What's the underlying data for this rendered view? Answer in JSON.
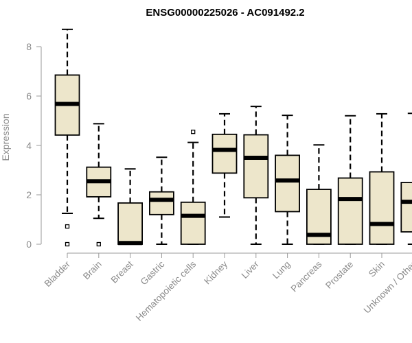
{
  "chart_data": {
    "type": "boxplot",
    "title": "ENSG00000225026 - AC091492.2",
    "ylabel": "Expression",
    "xlabel": "",
    "ylim": [
      0,
      8.8
    ],
    "yticks": [
      0,
      2,
      4,
      6,
      8
    ],
    "box_fill": "#ede6cb",
    "categories": [
      "Bladder",
      "Brain",
      "Breast",
      "Gastric",
      "Hematopoietic cells",
      "Kidney",
      "Liver",
      "Lung",
      "Pancreas",
      "Prostate",
      "Skin",
      "Unknown / Other"
    ],
    "boxes": [
      {
        "min": 1.25,
        "q1": 4.42,
        "median": 5.68,
        "q3": 6.85,
        "max": 8.7,
        "outliers": [
          0.72,
          0.0
        ]
      },
      {
        "min": 1.05,
        "q1": 1.92,
        "median": 2.55,
        "q3": 3.12,
        "max": 4.88,
        "outliers": [
          0.0
        ]
      },
      {
        "min": 0.0,
        "q1": 0.0,
        "median": 0.05,
        "q3": 1.67,
        "max": 3.05,
        "outliers": []
      },
      {
        "min": 0.0,
        "q1": 1.2,
        "median": 1.8,
        "q3": 2.12,
        "max": 3.52,
        "outliers": []
      },
      {
        "min": 0.0,
        "q1": 0.0,
        "median": 1.15,
        "q3": 1.7,
        "max": 4.12,
        "outliers": [
          4.55
        ]
      },
      {
        "min": 1.1,
        "q1": 2.88,
        "median": 3.82,
        "q3": 4.45,
        "max": 5.28,
        "outliers": []
      },
      {
        "min": 0.0,
        "q1": 1.88,
        "median": 3.5,
        "q3": 4.43,
        "max": 5.58,
        "outliers": []
      },
      {
        "min": 0.0,
        "q1": 1.32,
        "median": 2.58,
        "q3": 3.6,
        "max": 5.22,
        "outliers": []
      },
      {
        "min": 0.0,
        "q1": 0.0,
        "median": 0.38,
        "q3": 2.22,
        "max": 4.02,
        "outliers": []
      },
      {
        "min": 0.0,
        "q1": 0.0,
        "median": 1.83,
        "q3": 2.68,
        "max": 5.2,
        "outliers": []
      },
      {
        "min": 0.0,
        "q1": 0.0,
        "median": 0.82,
        "q3": 2.93,
        "max": 5.28,
        "outliers": []
      },
      {
        "min": 0.0,
        "q1": 0.5,
        "median": 1.72,
        "q3": 2.5,
        "max": 5.3,
        "outliers": []
      }
    ]
  }
}
